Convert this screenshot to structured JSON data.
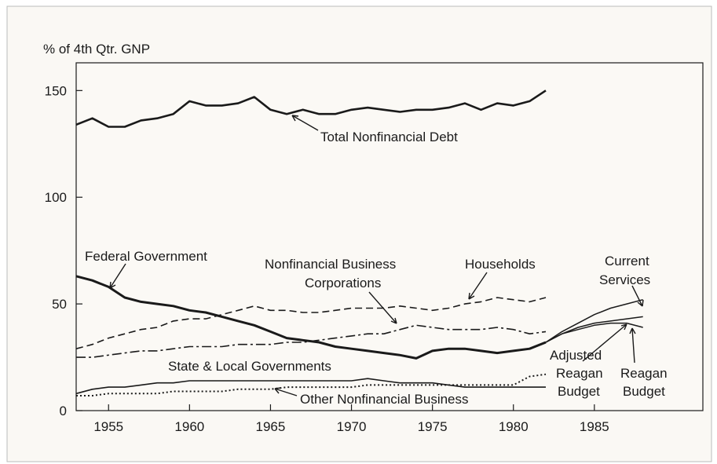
{
  "chart_data": {
    "type": "line",
    "y_label": "% of 4th Qtr. GNP",
    "x": [
      1953,
      1954,
      1955,
      1956,
      1957,
      1958,
      1959,
      1960,
      1961,
      1962,
      1963,
      1964,
      1965,
      1966,
      1967,
      1968,
      1969,
      1970,
      1971,
      1972,
      1973,
      1974,
      1975,
      1976,
      1977,
      1978,
      1979,
      1980,
      1981,
      1982,
      1983,
      1984,
      1985,
      1986,
      1987,
      1988
    ],
    "xlim": [
      1953,
      1991.7
    ],
    "ylim": [
      0,
      163
    ],
    "xticks": [
      1955,
      1960,
      1965,
      1970,
      1975,
      1980,
      1985
    ],
    "yticks": [
      0,
      50,
      100,
      150
    ],
    "grid": false,
    "series": [
      {
        "color": "#1a1a1a",
        "width": 2.6,
        "style": "solid",
        "values": [
          134,
          137,
          133,
          133,
          136,
          137,
          139,
          145,
          143,
          143,
          144,
          147,
          141,
          139,
          141,
          139,
          139,
          141,
          142,
          141,
          140,
          141,
          141,
          142,
          144,
          141,
          144,
          143,
          145,
          150,
          null,
          null,
          null,
          null,
          null,
          null
        ]
      },
      {
        "color": "#1a1a1a",
        "width": 3,
        "style": "solid",
        "values": [
          63,
          61,
          58,
          53,
          51,
          50,
          49,
          47,
          46,
          44,
          42,
          40,
          37,
          34,
          33,
          32,
          30,
          29,
          28,
          27,
          26,
          24.5,
          28,
          29,
          29,
          28,
          27,
          28,
          29,
          32,
          null,
          null,
          null,
          null,
          null,
          null
        ]
      },
      {
        "color": "#1a1a1a",
        "width": 1.5,
        "style": "solid",
        "values": [
          null,
          null,
          null,
          null,
          null,
          null,
          null,
          null,
          null,
          null,
          null,
          null,
          null,
          null,
          null,
          null,
          null,
          null,
          null,
          null,
          null,
          null,
          null,
          null,
          null,
          null,
          null,
          null,
          null,
          32,
          37,
          41,
          45,
          48,
          50,
          52
        ]
      },
      {
        "color": "#1a1a1a",
        "width": 1.5,
        "style": "solid",
        "values": [
          null,
          null,
          null,
          null,
          null,
          null,
          null,
          null,
          null,
          null,
          null,
          null,
          null,
          null,
          null,
          null,
          null,
          null,
          null,
          null,
          null,
          null,
          null,
          null,
          null,
          null,
          null,
          null,
          null,
          32,
          36,
          39,
          41,
          42,
          43,
          44
        ]
      },
      {
        "color": "#1a1a1a",
        "width": 1.5,
        "style": "solid",
        "values": [
          null,
          null,
          null,
          null,
          null,
          null,
          null,
          null,
          null,
          null,
          null,
          null,
          null,
          null,
          null,
          null,
          null,
          null,
          null,
          null,
          null,
          null,
          null,
          null,
          null,
          null,
          null,
          null,
          null,
          32,
          36,
          38,
          40,
          41,
          41,
          39
        ]
      },
      {
        "color": "#1a1a1a",
        "width": 1.6,
        "style": "dash",
        "values": [
          29,
          31,
          34,
          36,
          38,
          39,
          42,
          43,
          43,
          45,
          47,
          49,
          47,
          47,
          46,
          46,
          47,
          48,
          48,
          48,
          49,
          48,
          47,
          48,
          50,
          51,
          53,
          52,
          51,
          53,
          null,
          null,
          null,
          null,
          null,
          null
        ]
      },
      {
        "color": "#1a1a1a",
        "width": 1.6,
        "style": "dashdot",
        "values": [
          25,
          25,
          26,
          27,
          28,
          28,
          29,
          30,
          30,
          30,
          31,
          31,
          31,
          32,
          32,
          33,
          34,
          35,
          36,
          36,
          38,
          40,
          39,
          38,
          38,
          38,
          39,
          38,
          36,
          37,
          null,
          null,
          null,
          null,
          null,
          null
        ]
      },
      {
        "color": "#1a1a1a",
        "width": 1.6,
        "style": "solid",
        "values": [
          8,
          10,
          11,
          11,
          12,
          13,
          13,
          14,
          14,
          14,
          14,
          14,
          14,
          14,
          14,
          14,
          14,
          14,
          15,
          14,
          13,
          13,
          13,
          12,
          11,
          11,
          11,
          11,
          11,
          11,
          null,
          null,
          null,
          null,
          null,
          null
        ]
      },
      {
        "color": "#1a1a1a",
        "width": 2,
        "style": "dot",
        "values": [
          7,
          7,
          8,
          8,
          8,
          8,
          9,
          9,
          9,
          9,
          10,
          10,
          10,
          11,
          11,
          11,
          11,
          11,
          12,
          12,
          12,
          12,
          12,
          12,
          12,
          12,
          12,
          12,
          16,
          17,
          null,
          null,
          null,
          null,
          null,
          null
        ]
      }
    ],
    "annotations": [
      "Total Nonfinancial Debt",
      "Federal Government",
      "Nonfinancial Business",
      "Corporations",
      "Households",
      "Current",
      "Services",
      "Adjusted",
      "Reagan",
      "Budget",
      "Reagan",
      "Budget",
      "State & Local Governments",
      "Other Nonfinancial Business"
    ]
  }
}
